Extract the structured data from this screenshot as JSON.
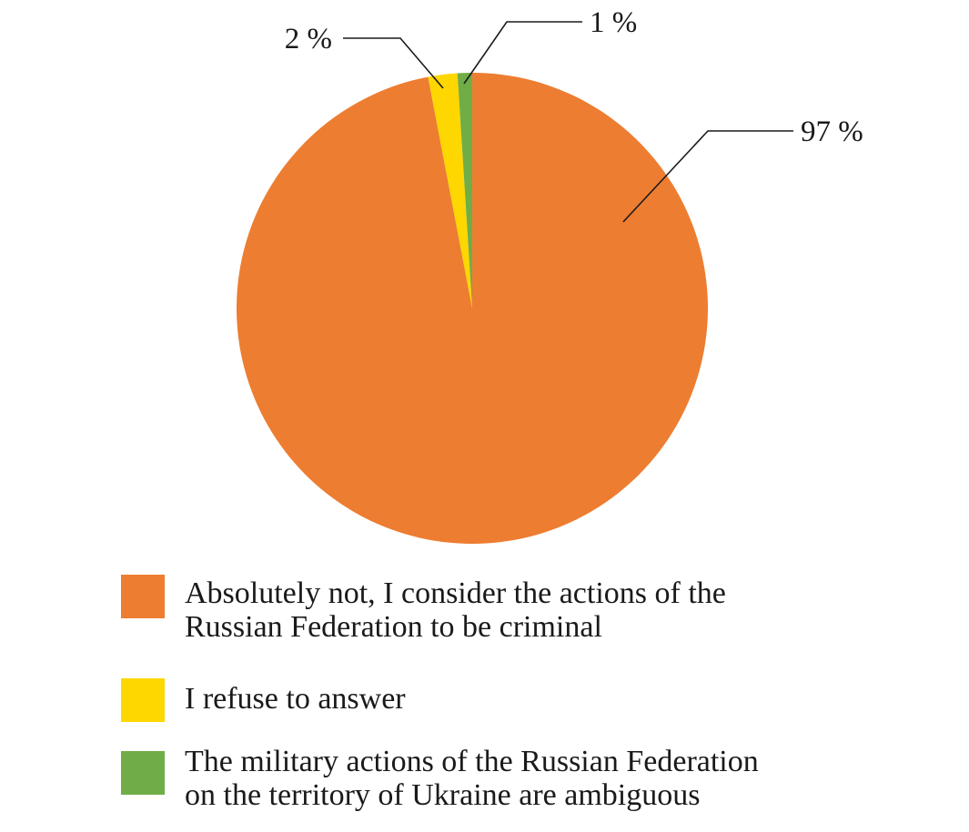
{
  "chart_data": {
    "type": "pie",
    "title": "",
    "slices": [
      {
        "label": "Absolutely not, I consider the actions of the Russian Federation to be criminal",
        "value": 97,
        "display": "97 %",
        "color": "#ED7D31"
      },
      {
        "label": "I refuse to answer",
        "value": 2,
        "display": "2 %",
        "color": "#FFD700"
      },
      {
        "label": "The military actions of the Russian Federation on the territory of Ukraine are ambiguous",
        "value": 1,
        "display": "1 %",
        "color": "#70AD47"
      }
    ],
    "legend_position": "bottom-left"
  },
  "legend": {
    "items": [
      {
        "text": "Absolutely not, I consider the actions of the\nRussian Federation to be criminal",
        "color": "#ED7D31"
      },
      {
        "text": "I refuse to answer",
        "color": "#FFD700"
      },
      {
        "text": "The military actions of the Russian Federation\non the territory of Ukraine are ambiguous",
        "color": "#70AD47"
      }
    ]
  }
}
